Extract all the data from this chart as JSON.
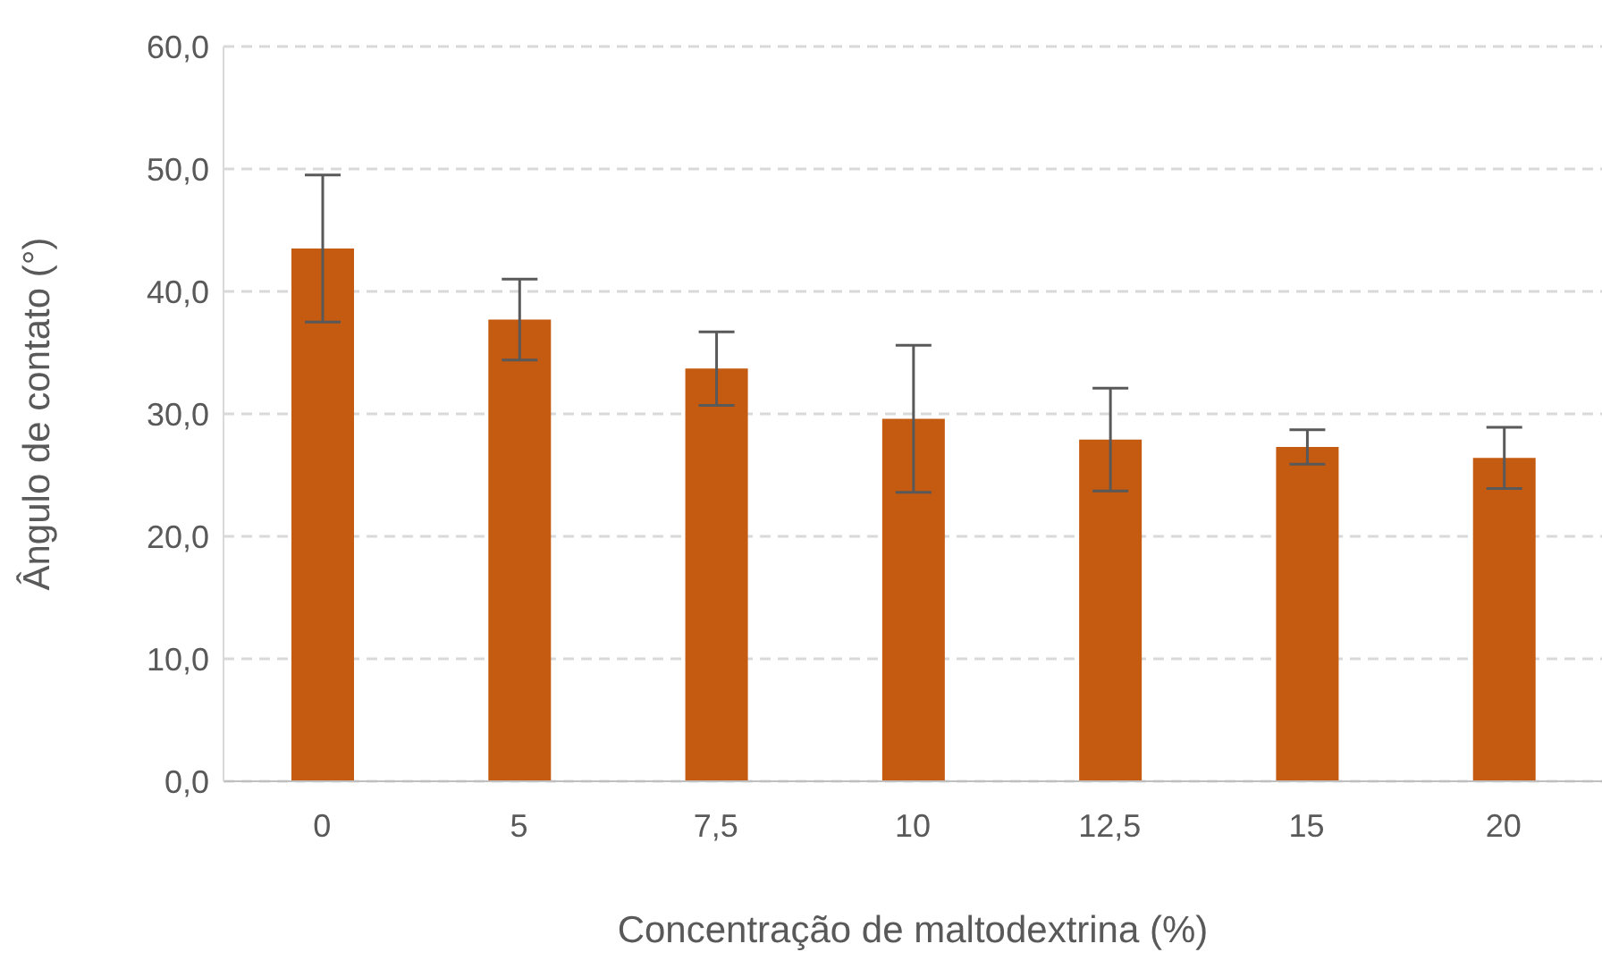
{
  "chart_data": {
    "type": "bar",
    "xlabel": "Concentração de maltodextrina (%)",
    "ylabel": "Ângulo de contato (°)",
    "categories": [
      "0",
      "5",
      "7,5",
      "10",
      "12,5",
      "15",
      "20"
    ],
    "series": [
      {
        "color": "#c55a11",
        "values": [
          43.5,
          37.7,
          33.7,
          29.6,
          27.9,
          27.3,
          26.4
        ],
        "errors": [
          6.0,
          3.3,
          3.0,
          6.0,
          4.2,
          1.4,
          2.5
        ]
      }
    ],
    "ylim": [
      0,
      60
    ],
    "yticks": [
      {
        "value": 0,
        "label": "0,0"
      },
      {
        "value": 10,
        "label": "10,0"
      },
      {
        "value": 20,
        "label": "20,0"
      },
      {
        "value": 30,
        "label": "30,0"
      },
      {
        "value": 40,
        "label": "40,0"
      },
      {
        "value": 50,
        "label": "50,0"
      },
      {
        "value": 60,
        "label": "60,0"
      }
    ],
    "grid": "y",
    "legend": false
  }
}
